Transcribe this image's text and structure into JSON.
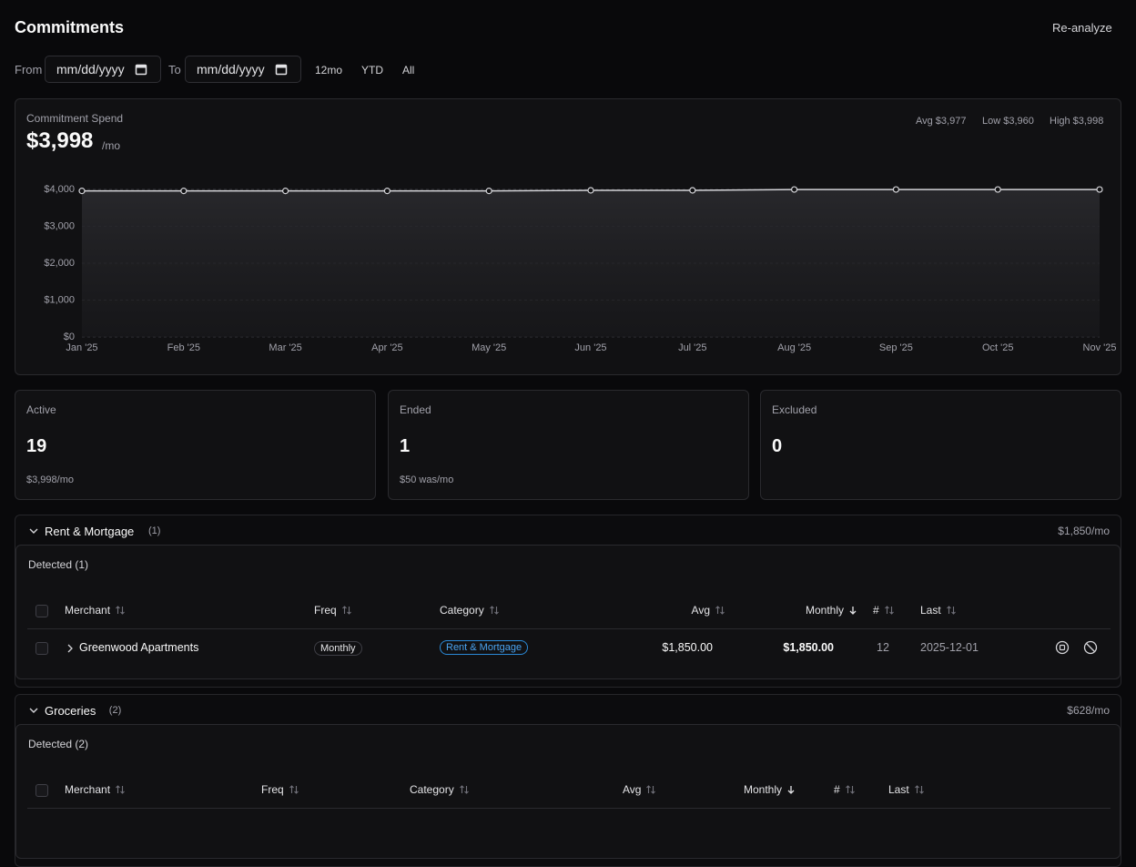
{
  "header": {
    "title": "Commitments",
    "action": "Re-analyze"
  },
  "filters": {
    "from_label": "From",
    "from_placeholder": "mm/dd/yyyy",
    "to_label": "To",
    "to_placeholder": "mm/dd/yyyy",
    "presets": [
      "12mo",
      "YTD",
      "All"
    ]
  },
  "chart_data": {
    "type": "line",
    "title": "Commitment Spend",
    "value": "$3,998",
    "unit": "/mo",
    "stats": [
      "Avg $3,977",
      "Low $3,960",
      "High $3,998"
    ],
    "categories": [
      "Jan '25",
      "Feb '25",
      "Mar '25",
      "Apr '25",
      "May '25",
      "Jun '25",
      "Jul '25",
      "Aug '25",
      "Sep '25",
      "Oct '25",
      "Nov '25"
    ],
    "values": [
      3960,
      3960,
      3960,
      3960,
      3960,
      3975,
      3975,
      3998,
      3998,
      3998,
      3998
    ],
    "color": "#d4d4d8",
    "ylim": [
      0,
      4000
    ],
    "yticks": [
      {
        "value": 0,
        "label": "$0"
      },
      {
        "value": 1000,
        "label": "$1,000"
      },
      {
        "value": 2000,
        "label": "$2,000"
      },
      {
        "value": 3000,
        "label": "$3,000"
      },
      {
        "value": 4000,
        "label": "$4,000"
      }
    ],
    "grid": true
  },
  "summary": [
    {
      "label": "Active",
      "value": 19,
      "note": "$3,998/mo"
    },
    {
      "label": "Ended",
      "value": 1,
      "note": "$50 was/mo"
    },
    {
      "label": "Excluded",
      "value": 0
    }
  ],
  "groups": [
    {
      "name": "Rent & Mortgage",
      "count": "(1)",
      "total": "$1,850/mo",
      "section": "Detected (1)",
      "columns": [
        "Merchant",
        "Freq",
        "Category",
        "Avg",
        "Monthly",
        "#",
        "Last"
      ],
      "rows": [
        [
          "Greenwood Apartments",
          "Monthly",
          "Rent & Mortgage",
          "$1,850.00",
          "$1,850.00",
          12,
          "2025-12-01"
        ]
      ]
    },
    {
      "name": "Groceries",
      "count": "(2)",
      "total": "$628/mo",
      "section": "Detected (2)",
      "columns": [
        "Merchant",
        "Freq",
        "Category",
        "Avg",
        "Monthly",
        "#",
        "Last"
      ]
    }
  ]
}
